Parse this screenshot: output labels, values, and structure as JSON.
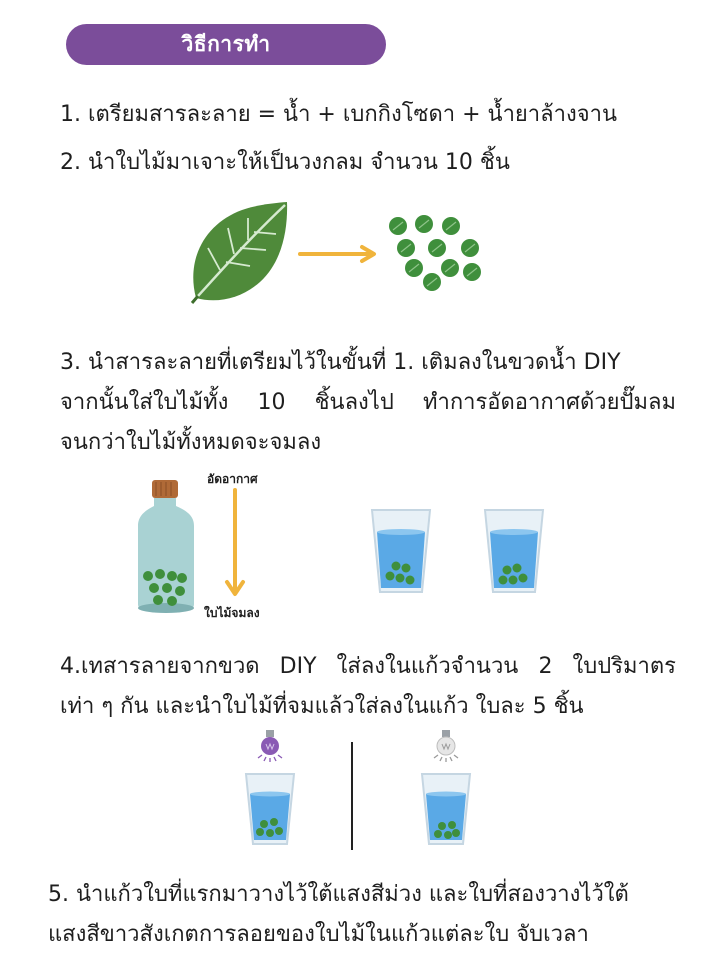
{
  "header": {
    "title": "วิธีการทำ"
  },
  "steps": {
    "s1": "1. เตรียมสารละลาย = น้ำ + เบกกิงโซดา + น้ำยาล้างจาน",
    "s2": "2. นำใบไม้มาเจาะให้เป็นวงกลม จำนวน 10 ชิ้น",
    "s3_line1": "3. นำสารละลายที่เตรียมไว้ในขั้นที่ 1. เติมลงในขวดน้ำ DIY",
    "s3_line2": "จากนั้นใส่ใบไม้ทั้ง 10 ชิ้นลงไป ทำการอัดอากาศด้วยปั๊มลม",
    "s3_line3": "จนกว่าใบไม้ทั้งหมดจะจมลง",
    "s4_line1": "4.เทสารลายจากขวด DIY ใส่ลงในแก้วจำนวน 2 ใบปริมาตร",
    "s4_line2": "เท่า ๆ กัน และนำใบไม้ที่จมแล้วใส่ลงในแก้ว ใบละ 5 ชิ้น",
    "s5_line1": "5.  นำแก้วใบที่แรกมาวางไว้ใต้แสงสีม่วง  และใบที่สองวางไว้ใต้",
    "s5_line2": "แสงสีขาวสังเกตการลอยของใบไม้ในแก้วแต่ละใบ จับเวลา"
  },
  "labels": {
    "compress": "อัดอากาศ",
    "leaves_sink": "ใบไม้จมลง"
  },
  "colors": {
    "header_bg": "#7b4d9a",
    "leaf": "#4f8a3a",
    "leaf_disc": "#3f8f3c",
    "arrow": "#f0b43c",
    "bottle_glass": "#a9d2d3",
    "bottle_cap": "#b06a37",
    "water": "#5aa9e6",
    "purple_bulb": "#8a5ab4",
    "white_bulb": "#dcdcdc"
  },
  "icons": {
    "leaf": "leaf-icon",
    "arrow": "right-arrow-icon",
    "bottle": "bottle-icon",
    "down_arrow": "down-arrow-icon",
    "glass": "glass-of-water-icon",
    "purple_bulb": "purple-bulb-icon",
    "white_bulb": "white-bulb-icon"
  }
}
